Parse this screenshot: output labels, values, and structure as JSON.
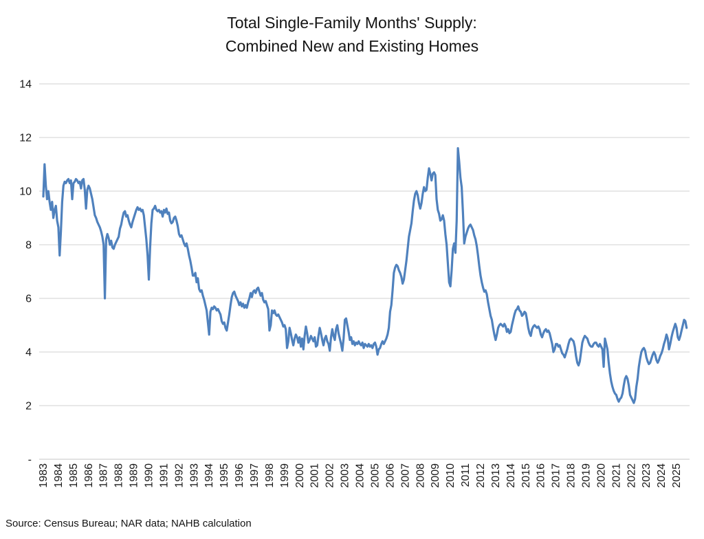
{
  "header": {
    "title_line1": "Total Single-Family Months' Supply:",
    "title_line2": "Combined New and Existing Homes"
  },
  "footer": {
    "source_note": "Source: Census Bureau; NAR data; NAHB calculation"
  },
  "colors": {
    "series_line": "#4F81BD",
    "gridline": "#D9D9D9",
    "axis_line": "#D0D0D0",
    "axis_text": "#1a1a1a",
    "background": "#FFFFFF"
  },
  "chart_data": {
    "type": "line",
    "title": "Total Single-Family Months' Supply: Combined New and Existing Homes",
    "xlabel": "",
    "ylabel": "",
    "legend": "none",
    "grid": "horizontal",
    "ylim": [
      0,
      14
    ],
    "frequency": "monthly",
    "x_start": {
      "year": 1983,
      "month": 1
    },
    "x_end": {
      "year": 2025,
      "month": 9
    },
    "y_ticks": [
      {
        "value": 0,
        "label": "-"
      },
      {
        "value": 2,
        "label": "2"
      },
      {
        "value": 4,
        "label": "4"
      },
      {
        "value": 6,
        "label": "6"
      },
      {
        "value": 8,
        "label": "8"
      },
      {
        "value": 10,
        "label": "10"
      },
      {
        "value": 12,
        "label": "12"
      },
      {
        "value": 14,
        "label": "14"
      }
    ],
    "x_tick_labels": [
      "1983",
      "1984",
      "1985",
      "1986",
      "1987",
      "1988",
      "1989",
      "1990",
      "1991",
      "1992",
      "1993",
      "1994",
      "1995",
      "1996",
      "1997",
      "1998",
      "1999",
      "2000",
      "2001",
      "2002",
      "2003",
      "2004",
      "2005",
      "2006",
      "2007",
      "2008",
      "2009",
      "2010",
      "2011",
      "2012",
      "2013",
      "2014",
      "2015",
      "2016",
      "2017",
      "2018",
      "2019",
      "2020",
      "2021",
      "2022",
      "2023",
      "2024",
      "2025"
    ],
    "values": [
      9.8,
      11.0,
      10.2,
      9.7,
      10.0,
      9.6,
      9.3,
      9.6,
      9.0,
      9.3,
      9.45,
      8.9,
      8.65,
      7.6,
      8.5,
      9.6,
      10.2,
      10.35,
      10.3,
      10.4,
      10.45,
      10.3,
      10.4,
      9.7,
      10.3,
      10.35,
      10.45,
      10.4,
      10.3,
      10.35,
      10.1,
      10.4,
      10.45,
      10.05,
      9.35,
      10.05,
      10.2,
      10.1,
      9.9,
      9.7,
      9.4,
      9.1,
      9.0,
      8.85,
      8.75,
      8.65,
      8.5,
      8.3,
      8.0,
      6.0,
      8.2,
      8.4,
      8.25,
      8.0,
      8.15,
      7.9,
      7.85,
      8.0,
      8.1,
      8.2,
      8.3,
      8.6,
      8.75,
      9.0,
      9.2,
      9.25,
      9.05,
      9.1,
      8.9,
      8.75,
      8.65,
      8.85,
      9.0,
      9.15,
      9.3,
      9.4,
      9.3,
      9.35,
      9.25,
      9.3,
      9.1,
      8.65,
      8.2,
      7.6,
      6.7,
      7.9,
      8.8,
      9.3,
      9.35,
      9.45,
      9.3,
      9.25,
      9.3,
      9.2,
      9.25,
      9.05,
      9.3,
      9.2,
      9.35,
      9.15,
      9.2,
      8.9,
      8.8,
      8.85,
      9.0,
      9.05,
      8.9,
      8.7,
      8.4,
      8.3,
      8.35,
      8.2,
      8.05,
      7.95,
      8.05,
      7.85,
      7.6,
      7.4,
      7.15,
      6.85,
      6.85,
      6.95,
      6.6,
      6.75,
      6.35,
      6.25,
      6.3,
      6.1,
      5.95,
      5.75,
      5.55,
      5.1,
      4.65,
      5.5,
      5.65,
      5.6,
      5.7,
      5.65,
      5.55,
      5.6,
      5.5,
      5.4,
      5.15,
      5.05,
      5.1,
      4.9,
      4.8,
      5.1,
      5.4,
      5.75,
      6.05,
      6.2,
      6.25,
      6.1,
      6.0,
      5.9,
      5.75,
      5.85,
      5.7,
      5.8,
      5.65,
      5.75,
      5.65,
      5.85,
      6.0,
      6.2,
      6.05,
      6.25,
      6.3,
      6.2,
      6.35,
      6.4,
      6.25,
      6.1,
      6.2,
      5.95,
      5.85,
      5.9,
      5.75,
      5.6,
      4.8,
      5.0,
      5.55,
      5.45,
      5.55,
      5.4,
      5.35,
      5.4,
      5.3,
      5.2,
      5.1,
      4.95,
      5.0,
      4.85,
      4.15,
      4.4,
      4.9,
      4.7,
      4.45,
      4.25,
      4.5,
      4.65,
      4.55,
      4.35,
      4.55,
      4.2,
      4.5,
      4.1,
      4.6,
      4.95,
      4.7,
      4.35,
      4.45,
      4.6,
      4.5,
      4.4,
      4.55,
      4.2,
      4.25,
      4.6,
      4.9,
      4.7,
      4.45,
      4.25,
      4.5,
      4.6,
      4.4,
      4.3,
      4.05,
      4.55,
      4.85,
      4.6,
      4.45,
      4.85,
      5.0,
      4.7,
      4.5,
      4.3,
      4.05,
      4.5,
      5.2,
      5.25,
      5.0,
      4.75,
      4.45,
      4.55,
      4.3,
      4.4,
      4.25,
      4.35,
      4.3,
      4.4,
      4.3,
      4.25,
      4.35,
      4.15,
      4.3,
      4.25,
      4.2,
      4.3,
      4.2,
      4.25,
      4.15,
      4.3,
      4.35,
      4.2,
      3.9,
      4.1,
      4.15,
      4.3,
      4.4,
      4.3,
      4.4,
      4.5,
      4.65,
      4.9,
      5.5,
      5.75,
      6.3,
      6.95,
      7.15,
      7.25,
      7.2,
      7.05,
      6.95,
      6.8,
      6.55,
      6.7,
      7.05,
      7.4,
      7.85,
      8.3,
      8.55,
      8.8,
      9.25,
      9.65,
      9.9,
      10.0,
      9.85,
      9.55,
      9.35,
      9.55,
      9.9,
      10.15,
      10.0,
      10.05,
      10.5,
      10.85,
      10.65,
      10.4,
      10.65,
      10.7,
      10.6,
      9.7,
      9.3,
      9.15,
      8.9,
      8.95,
      9.1,
      8.9,
      8.4,
      8.0,
      7.3,
      6.6,
      6.45,
      7.05,
      7.85,
      8.05,
      7.7,
      8.9,
      11.6,
      11.1,
      10.5,
      10.15,
      9.2,
      8.05,
      8.3,
      8.45,
      8.6,
      8.7,
      8.75,
      8.65,
      8.55,
      8.35,
      8.2,
      7.95,
      7.6,
      7.2,
      6.85,
      6.6,
      6.4,
      6.25,
      6.3,
      6.15,
      5.85,
      5.6,
      5.35,
      5.2,
      4.9,
      4.65,
      4.45,
      4.65,
      4.9,
      5.0,
      5.05,
      5.0,
      4.95,
      5.05,
      4.95,
      4.75,
      4.85,
      4.7,
      4.75,
      5.0,
      5.2,
      5.4,
      5.55,
      5.6,
      5.7,
      5.55,
      5.5,
      5.35,
      5.4,
      5.5,
      5.45,
      5.2,
      4.9,
      4.7,
      4.6,
      4.85,
      4.95,
      5.0,
      4.95,
      4.9,
      4.95,
      4.85,
      4.65,
      4.55,
      4.7,
      4.8,
      4.85,
      4.75,
      4.8,
      4.7,
      4.5,
      4.3,
      4.0,
      4.1,
      4.3,
      4.3,
      4.2,
      4.25,
      4.1,
      3.95,
      3.9,
      3.8,
      3.95,
      4.1,
      4.3,
      4.45,
      4.5,
      4.45,
      4.4,
      4.2,
      3.85,
      3.6,
      3.5,
      3.65,
      4.0,
      4.35,
      4.5,
      4.6,
      4.55,
      4.5,
      4.35,
      4.25,
      4.2,
      4.2,
      4.3,
      4.35,
      4.35,
      4.25,
      4.2,
      4.3,
      4.2,
      4.1,
      3.45,
      4.5,
      4.3,
      4.1,
      3.6,
      3.2,
      2.9,
      2.7,
      2.55,
      2.45,
      2.4,
      2.25,
      2.15,
      2.25,
      2.3,
      2.45,
      2.75,
      3.0,
      3.1,
      3.0,
      2.75,
      2.4,
      2.3,
      2.2,
      2.1,
      2.25,
      2.7,
      3.0,
      3.45,
      3.75,
      4.0,
      4.1,
      4.15,
      4.05,
      3.8,
      3.65,
      3.55,
      3.6,
      3.75,
      3.9,
      4.0,
      3.9,
      3.7,
      3.6,
      3.7,
      3.85,
      3.95,
      4.1,
      4.3,
      4.45,
      4.65,
      4.5,
      4.1,
      4.3,
      4.55,
      4.75,
      4.9,
      5.05,
      4.9,
      4.55,
      4.45,
      4.6,
      4.8,
      5.0,
      5.2,
      5.15,
      4.9
    ]
  }
}
